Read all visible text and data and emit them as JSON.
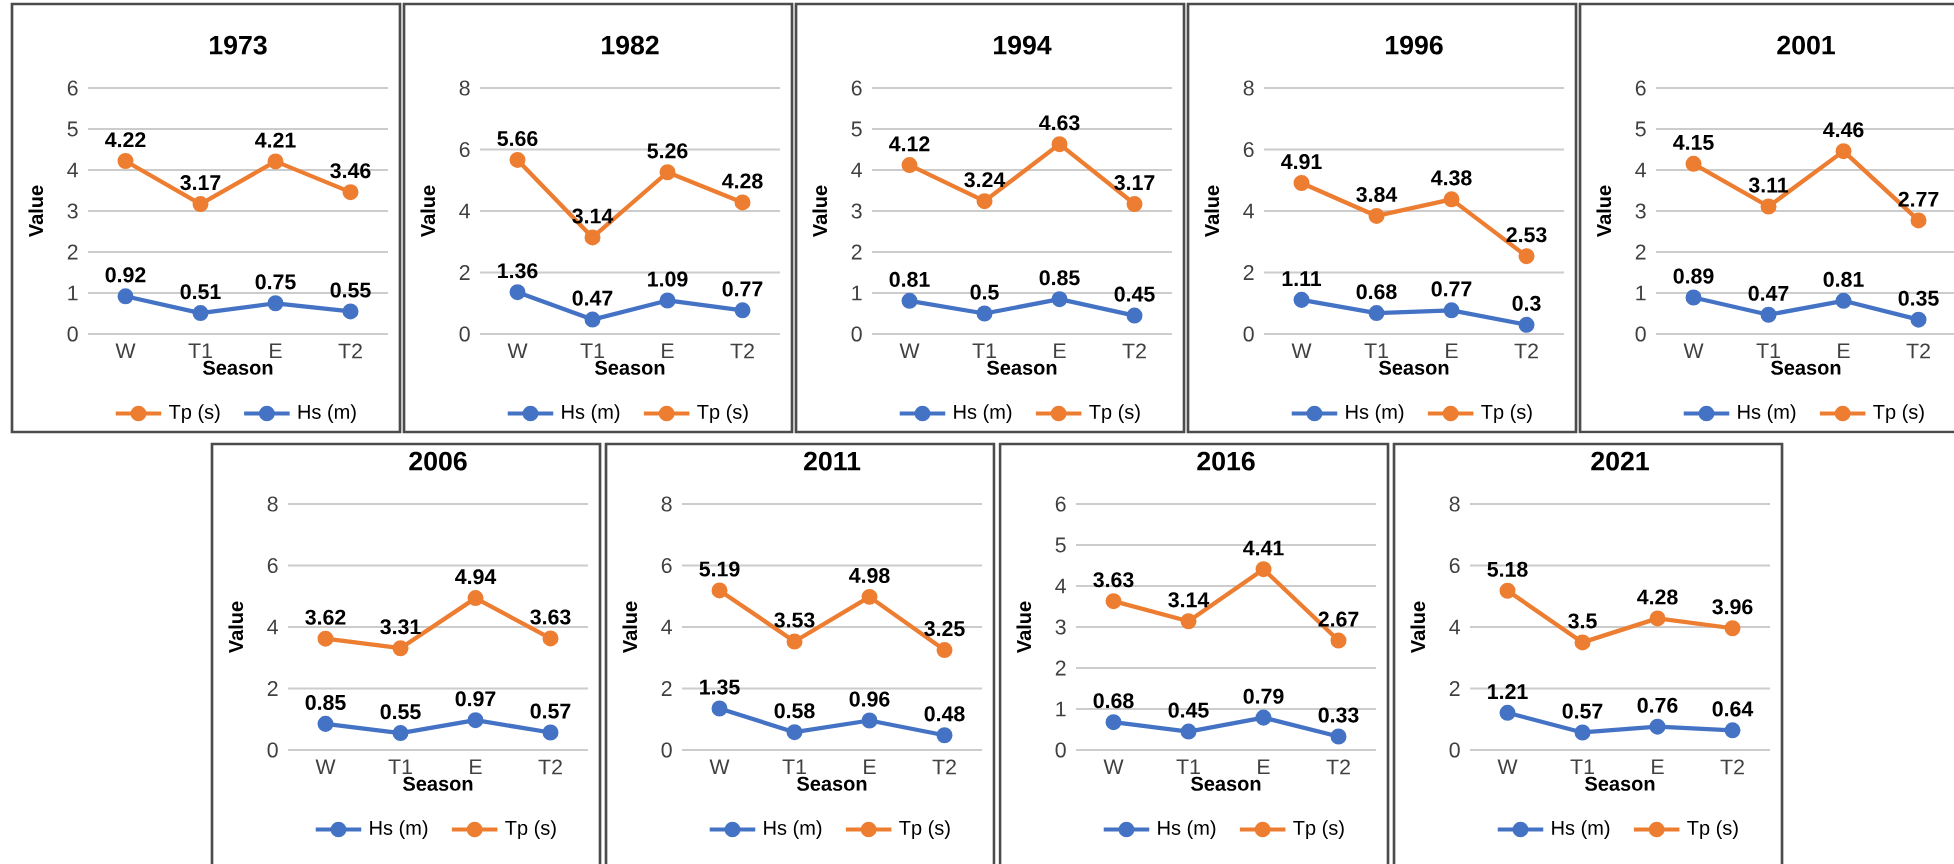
{
  "chart_data": [
    {
      "type": "line",
      "title": "1973",
      "xlabel": "Season",
      "ylabel": "Value",
      "categories": [
        "W",
        "T1",
        "E",
        "T2"
      ],
      "ylim": [
        0,
        6
      ],
      "yticks": [
        0,
        1,
        2,
        3,
        4,
        5,
        6
      ],
      "grid": "y",
      "legend": "bottom",
      "marker": "circle",
      "line_style": "solid",
      "data_labels": true,
      "series": [
        {
          "name": "Tp (s)",
          "color": "#ed7d31",
          "values": [
            4.22,
            3.17,
            4.21,
            3.46
          ]
        },
        {
          "name": "Hs (m)",
          "color": "#4472c4",
          "values": [
            0.92,
            0.51,
            0.75,
            0.55
          ]
        }
      ]
    },
    {
      "type": "line",
      "title": "1982",
      "xlabel": "Season",
      "ylabel": "Value",
      "categories": [
        "W",
        "T1",
        "E",
        "T2"
      ],
      "ylim": [
        0,
        8
      ],
      "yticks": [
        0,
        2,
        4,
        6,
        8
      ],
      "grid": "y",
      "legend": "bottom",
      "marker": "circle",
      "line_style": "solid",
      "data_labels": true,
      "series": [
        {
          "name": "Hs (m)",
          "color": "#4472c4",
          "values": [
            1.36,
            0.47,
            1.09,
            0.77
          ]
        },
        {
          "name": "Tp (s)",
          "color": "#ed7d31",
          "values": [
            5.66,
            3.14,
            5.26,
            4.28
          ]
        }
      ]
    },
    {
      "type": "line",
      "title": "1994",
      "xlabel": "Season",
      "ylabel": "Value",
      "categories": [
        "W",
        "T1",
        "E",
        "T2"
      ],
      "ylim": [
        0,
        6
      ],
      "yticks": [
        0,
        1,
        2,
        3,
        4,
        5,
        6
      ],
      "grid": "y",
      "legend": "bottom",
      "marker": "circle",
      "line_style": "solid",
      "data_labels": true,
      "series": [
        {
          "name": "Hs (m)",
          "color": "#4472c4",
          "values": [
            0.81,
            0.5,
            0.85,
            0.45
          ]
        },
        {
          "name": "Tp (s)",
          "color": "#ed7d31",
          "values": [
            4.12,
            3.24,
            4.63,
            3.17
          ]
        }
      ]
    },
    {
      "type": "line",
      "title": "1996",
      "xlabel": "Season",
      "ylabel": "Value",
      "categories": [
        "W",
        "T1",
        "E",
        "T2"
      ],
      "ylim": [
        0,
        8
      ],
      "yticks": [
        0,
        2,
        4,
        6,
        8
      ],
      "grid": "y",
      "legend": "bottom",
      "marker": "circle",
      "line_style": "solid",
      "data_labels": true,
      "series": [
        {
          "name": "Hs (m)",
          "color": "#4472c4",
          "values": [
            1.11,
            0.68,
            0.77,
            0.3
          ]
        },
        {
          "name": "Tp (s)",
          "color": "#ed7d31",
          "values": [
            4.91,
            3.84,
            4.38,
            2.53
          ]
        }
      ]
    },
    {
      "type": "line",
      "title": "2001",
      "xlabel": "Season",
      "ylabel": "Value",
      "categories": [
        "W",
        "T1",
        "E",
        "T2"
      ],
      "ylim": [
        0,
        6
      ],
      "yticks": [
        0,
        1,
        2,
        3,
        4,
        5,
        6
      ],
      "grid": "y",
      "legend": "bottom",
      "marker": "circle",
      "line_style": "solid",
      "data_labels": true,
      "series": [
        {
          "name": "Hs (m)",
          "color": "#4472c4",
          "values": [
            0.89,
            0.47,
            0.81,
            0.35
          ]
        },
        {
          "name": "Tp (s)",
          "color": "#ed7d31",
          "values": [
            4.15,
            3.11,
            4.46,
            2.77
          ]
        }
      ]
    },
    {
      "type": "line",
      "title": "2006",
      "xlabel": "Season",
      "ylabel": "Value",
      "categories": [
        "W",
        "T1",
        "E",
        "T2"
      ],
      "ylim": [
        0,
        8
      ],
      "yticks": [
        0,
        2,
        4,
        6,
        8
      ],
      "grid": "y",
      "legend": "bottom",
      "marker": "circle",
      "line_style": "solid",
      "data_labels": true,
      "series": [
        {
          "name": "Hs (m)",
          "color": "#4472c4",
          "values": [
            0.85,
            0.55,
            0.97,
            0.57
          ]
        },
        {
          "name": "Tp (s)",
          "color": "#ed7d31",
          "values": [
            3.62,
            3.31,
            4.94,
            3.63
          ]
        }
      ]
    },
    {
      "type": "line",
      "title": "2011",
      "xlabel": "Season",
      "ylabel": "Value",
      "categories": [
        "W",
        "T1",
        "E",
        "T2"
      ],
      "ylim": [
        0,
        8
      ],
      "yticks": [
        0,
        2,
        4,
        6,
        8
      ],
      "grid": "y",
      "legend": "bottom",
      "marker": "circle",
      "line_style": "solid",
      "data_labels": true,
      "series": [
        {
          "name": "Hs (m)",
          "color": "#4472c4",
          "values": [
            1.35,
            0.58,
            0.96,
            0.48
          ]
        },
        {
          "name": "Tp (s)",
          "color": "#ed7d31",
          "values": [
            5.19,
            3.53,
            4.98,
            3.25
          ]
        }
      ]
    },
    {
      "type": "line",
      "title": "2016",
      "xlabel": "Season",
      "ylabel": "Value",
      "categories": [
        "W",
        "T1",
        "E",
        "T2"
      ],
      "ylim": [
        0,
        6
      ],
      "yticks": [
        0,
        1,
        2,
        3,
        4,
        5,
        6
      ],
      "grid": "y",
      "legend": "bottom",
      "marker": "circle",
      "line_style": "solid",
      "data_labels": true,
      "series": [
        {
          "name": "Hs (m)",
          "color": "#4472c4",
          "values": [
            0.68,
            0.45,
            0.79,
            0.33
          ]
        },
        {
          "name": "Tp (s)",
          "color": "#ed7d31",
          "values": [
            3.63,
            3.14,
            4.41,
            2.67
          ]
        }
      ]
    },
    {
      "type": "line",
      "title": "2021",
      "xlabel": "Season",
      "ylabel": "Value",
      "categories": [
        "W",
        "T1",
        "E",
        "T2"
      ],
      "ylim": [
        0,
        8
      ],
      "yticks": [
        0,
        2,
        4,
        6,
        8
      ],
      "grid": "y",
      "legend": "bottom",
      "marker": "circle",
      "line_style": "solid",
      "data_labels": true,
      "series": [
        {
          "name": "Hs (m)",
          "color": "#4472c4",
          "values": [
            1.21,
            0.57,
            0.76,
            0.64
          ]
        },
        {
          "name": "Tp (s)",
          "color": "#ed7d31",
          "values": [
            5.18,
            3.5,
            4.28,
            3.96
          ]
        }
      ]
    }
  ]
}
